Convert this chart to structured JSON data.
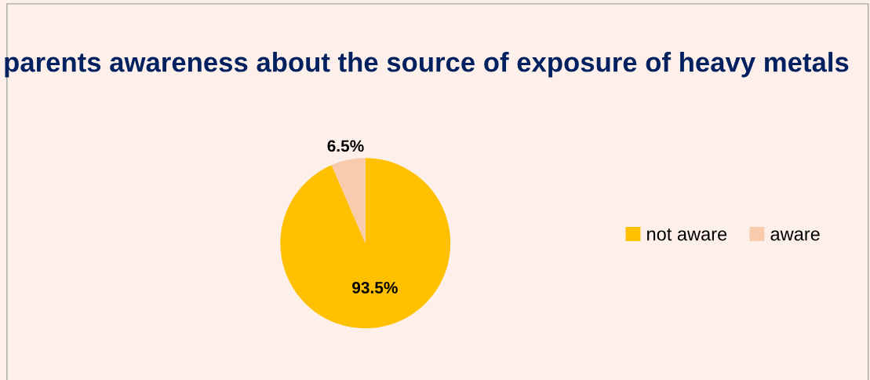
{
  "chart_data": {
    "type": "pie",
    "title": "parents awareness about the source of exposure of heavy metals",
    "categories": [
      "not aware",
      "aware"
    ],
    "values": [
      93.5,
      6.5
    ],
    "colors": [
      "#ffc000",
      "#f8cbad"
    ],
    "value_labels": [
      "93.5%",
      "6.5%"
    ],
    "legend": "right"
  }
}
